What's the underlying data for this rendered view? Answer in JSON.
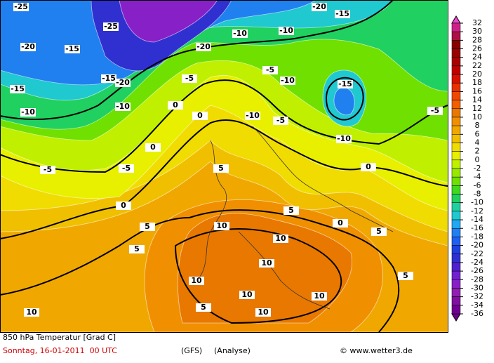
{
  "map": {
    "contour_labels": [
      "-25",
      "-25",
      "-20",
      "-15",
      "-20",
      "-10",
      "-10",
      "-20",
      "-15",
      "-15",
      "-20",
      "-10",
      "-10",
      "-15",
      "-5",
      "-5",
      "-5",
      "0",
      "5",
      "-15",
      "-10",
      "-5",
      "0",
      "5",
      "10",
      "10",
      "10",
      "10",
      "10",
      "10",
      "10",
      "10",
      "5",
      "5",
      "5",
      "5",
      "0",
      "0",
      "-10",
      "-5",
      "-10",
      "-5",
      "0",
      "0",
      "5"
    ]
  },
  "colorbar": {
    "ticks": [
      32,
      30,
      28,
      26,
      24,
      22,
      20,
      18,
      16,
      14,
      12,
      10,
      8,
      6,
      4,
      2,
      0,
      -2,
      -4,
      -6,
      -8,
      -10,
      -12,
      -14,
      -16,
      -18,
      -20,
      -22,
      -24,
      -26,
      -28,
      -30,
      -32,
      -34,
      -36
    ],
    "colors": [
      "#ee44cc",
      "#cc2288",
      "#aa1144",
      "#880000",
      "#990000",
      "#aa0000",
      "#c00000",
      "#d81000",
      "#e83000",
      "#f04800",
      "#f06000",
      "#e87800",
      "#f09000",
      "#f0a800",
      "#f0c000",
      "#f0dc00",
      "#e8f000",
      "#c0f000",
      "#98e800",
      "#70e000",
      "#40d820",
      "#20d060",
      "#20d0a0",
      "#20c8d0",
      "#20a8f0",
      "#2080f0",
      "#2060f0",
      "#2040e0",
      "#3030d0",
      "#5020d0",
      "#7020d0",
      "#8820c8",
      "#9020b0",
      "#8010a0",
      "#700090"
    ]
  },
  "footer": {
    "title": "850 hPa Temperatur [Grad C]",
    "date": "Sonntag, 16-01-2011  00 UTC",
    "model": "(GFS)",
    "run": "(Analyse)",
    "credit": "© www.wetter3.de"
  }
}
